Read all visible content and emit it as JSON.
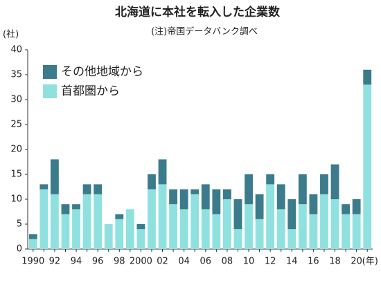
{
  "chart_data": {
    "type": "stacked_bar",
    "title": "北海道に本社を転入した企業数",
    "subtitle": "(注)帝国データバンク調べ",
    "y_label": "(社)",
    "x_unit": "(年)",
    "categories": [
      "1990",
      null,
      "92",
      null,
      "94",
      null,
      "96",
      null,
      "98",
      null,
      "2000",
      null,
      "02",
      null,
      "04",
      null,
      "06",
      null,
      "08",
      null,
      "10",
      null,
      "12",
      null,
      "14",
      null,
      "16",
      null,
      "18",
      null,
      "20",
      null
    ],
    "series": [
      {
        "name": "首都圏から",
        "color": "#8fe1e0",
        "values": [
          2,
          12,
          11,
          7,
          8,
          11,
          11,
          5,
          6,
          8,
          4,
          12,
          13,
          9,
          8,
          11,
          8,
          7,
          10,
          4,
          9,
          6,
          13,
          8,
          4,
          9,
          7,
          11,
          10,
          7,
          7,
          33
        ]
      },
      {
        "name": "その他地域から",
        "color": "#3b7b8b",
        "values": [
          1,
          1,
          7,
          2,
          1,
          2,
          2,
          0,
          1,
          0,
          1,
          3,
          5,
          3,
          4,
          1,
          5,
          5,
          2,
          6,
          6,
          5,
          2,
          5,
          6,
          6,
          4,
          4,
          7,
          2,
          3,
          3
        ]
      }
    ],
    "ylim": [
      0,
      40
    ],
    "yticks": [
      0,
      5,
      10,
      15,
      20,
      25,
      30,
      35,
      40
    ],
    "grid": false
  }
}
